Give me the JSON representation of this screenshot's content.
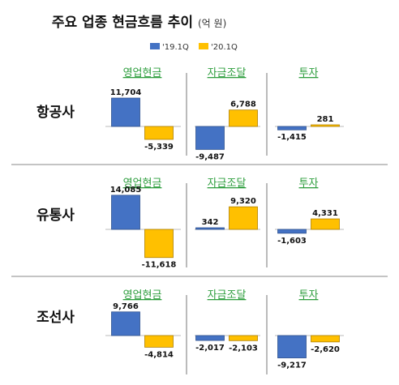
{
  "title": "주요 업종 현금흐름 추이",
  "unit": "(억 원)",
  "colors": {
    "s1": "#4472c4",
    "s2": "#ffc000",
    "s1_edge": "#2f528f",
    "s2_edge": "#b08000"
  },
  "chart_data": {
    "type": "bar",
    "title": "주요 업종 현금흐름 추이",
    "unit": "억 원",
    "legend": {
      "placement": "top-center"
    },
    "series": [
      {
        "name": "'19.1Q"
      },
      {
        "name": "'20.1Q"
      }
    ],
    "panel_categories": [
      "영업현금",
      "자금조달",
      "투자"
    ],
    "rows": [
      {
        "name": "항공사",
        "panels": [
          {
            "category": "영업현금",
            "values": [
              11704,
              -5339
            ],
            "labels": [
              "11,704",
              "-5,339"
            ]
          },
          {
            "category": "자금조달",
            "values": [
              -9487,
              6788
            ],
            "labels": [
              "-9,487",
              "6,788"
            ]
          },
          {
            "category": "투자",
            "values": [
              -1415,
              281
            ],
            "labels": [
              "-1,415",
              "281"
            ]
          }
        ]
      },
      {
        "name": "유통사",
        "panels": [
          {
            "category": "영업현금",
            "values": [
              14085,
              -11618
            ],
            "labels": [
              "14,085",
              "-11,618"
            ]
          },
          {
            "category": "자금조달",
            "values": [
              342,
              9320
            ],
            "labels": [
              "342",
              "9,320"
            ]
          },
          {
            "category": "투자",
            "values": [
              -1603,
              4331
            ],
            "labels": [
              "-1,603",
              "4,331"
            ]
          }
        ]
      },
      {
        "name": "조선사",
        "panels": [
          {
            "category": "영업현금",
            "values": [
              9766,
              -4814
            ],
            "labels": [
              "9,766",
              "-4,814"
            ]
          },
          {
            "category": "자금조달",
            "values": [
              -2017,
              -2103
            ],
            "labels": [
              "-2,017",
              "-2,103"
            ]
          },
          {
            "category": "투자",
            "values": [
              -9217,
              -2620
            ],
            "labels": [
              "-9,217",
              "-2,620"
            ]
          }
        ]
      }
    ]
  }
}
